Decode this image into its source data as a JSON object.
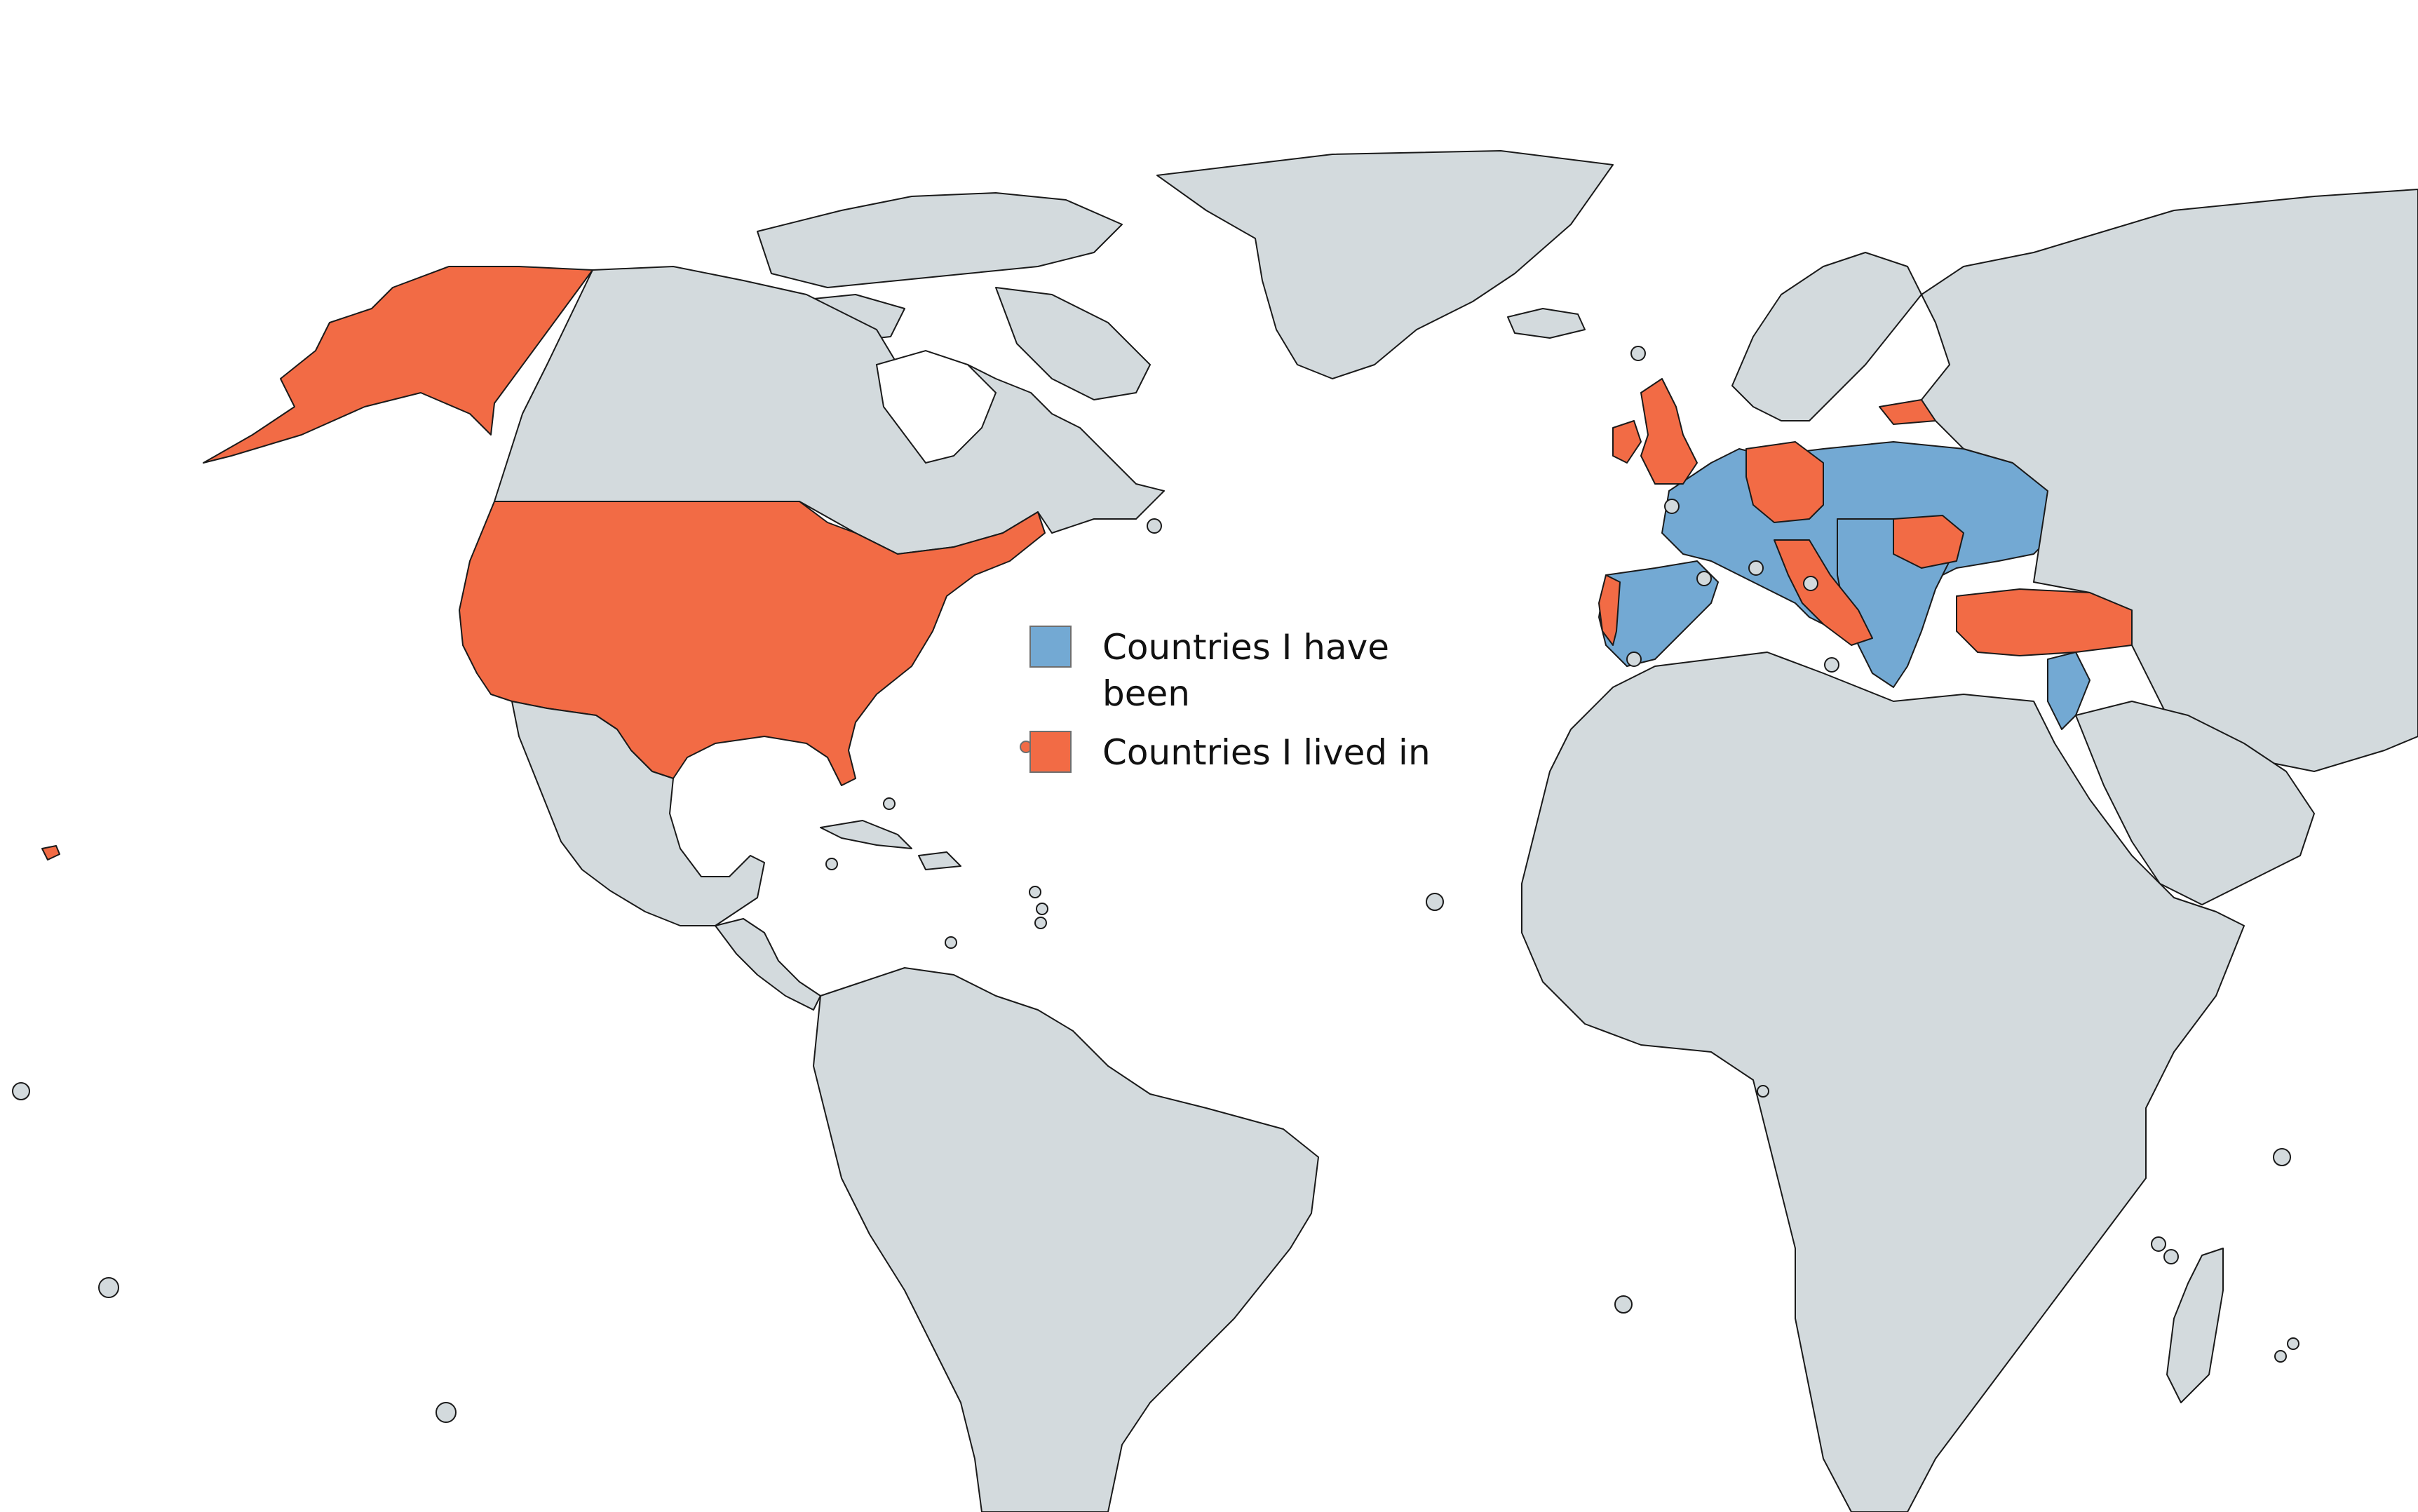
{
  "colors": {
    "default": "#d3dadd",
    "visited": "#73a9d3",
    "lived": "#f26b45",
    "border": "#1a1a1a",
    "water": "#ffffff"
  },
  "legend": {
    "items": [
      {
        "label": "Countries I have been",
        "color": "#73a9d3"
      },
      {
        "label": "Countries I lived in",
        "color": "#f26b45"
      }
    ]
  },
  "map": {
    "categories": {
      "lived": [
        "United States",
        "United Kingdom",
        "Ireland",
        "Germany",
        "Italy",
        "Portugal",
        "Romania",
        "Turkey",
        "Latvia"
      ],
      "visited": [
        "France",
        "Spain",
        "Belgium",
        "Netherlands",
        "Switzerland",
        "Austria",
        "Czechia",
        "Poland",
        "Slovakia",
        "Hungary",
        "Ukraine",
        "Belarus",
        "Lithuania",
        "Moldova",
        "Slovenia",
        "Croatia",
        "Bosnia and Herzegovina",
        "Serbia",
        "Montenegro",
        "Albania",
        "North Macedonia",
        "Bulgaria",
        "Greece",
        "Israel",
        "Jordan",
        "Cyprus"
      ]
    }
  }
}
